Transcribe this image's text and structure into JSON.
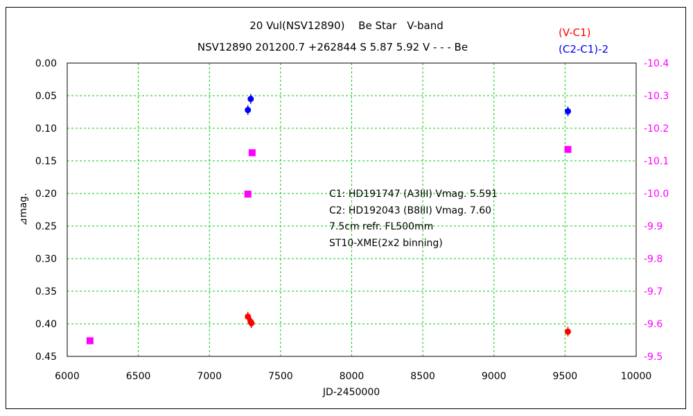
{
  "chart_data": {
    "type": "scatter",
    "title": "20 Vul(NSV12890)　 Be Star　V-band",
    "subtitle": "NSV12890 201200.7 +262844 S 5.87 5.92 V - - - Be",
    "xlabel": "JD-2450000",
    "ylabel": "⊿mag.",
    "xlim": [
      6000,
      10000
    ],
    "x_ticks": [
      6000,
      6500,
      7000,
      7500,
      8000,
      8500,
      9000,
      9500,
      10000
    ],
    "ylim_left": [
      0.0,
      0.45
    ],
    "y_left_ticks": [
      "0.00",
      "0.05",
      "0.10",
      "0.15",
      "0.20",
      "0.25",
      "0.30",
      "0.35",
      "0.40",
      "0.45"
    ],
    "y_left_inverted": true,
    "ylim_right": [
      -10.4,
      -9.5
    ],
    "y_right_ticks": [
      "-10.4",
      "-10.3",
      "-10.2",
      "-10.1",
      "-10.0",
      "-9.9",
      "-9.8",
      "-9.7",
      "-9.6",
      "-9.5"
    ],
    "grid": true,
    "legend_position": "top-right",
    "legend": [
      {
        "label": "(V-C1)",
        "color": "#ff0000"
      },
      {
        "label": "(C2-C1)-2",
        "color": "#0000ff"
      }
    ],
    "annotations": [
      "C1: HD191747 (A3III) Vmag. 5.591",
      "C2: HD192043 (B8III) Vmag. 7.60",
      "7.5cm refr. FL500mm",
      "ST10-XME(2x2 binning)"
    ],
    "series": [
      {
        "name": "(V-C1)",
        "axis": "left",
        "color": "#ff0000",
        "marker": "circle",
        "points": [
          [
            7270,
            0.389
          ],
          [
            7290,
            0.397
          ],
          [
            7295,
            0.399
          ],
          [
            9520,
            0.412
          ]
        ]
      },
      {
        "name": "(C2-C1)-2",
        "axis": "left",
        "color": "#0000ff",
        "marker": "circle",
        "points": [
          [
            7270,
            0.072
          ],
          [
            7290,
            0.055
          ],
          [
            9520,
            0.074
          ]
        ]
      },
      {
        "axis": "right",
        "color": "#ff00ff",
        "marker": "square",
        "points": [
          [
            6160,
            -9.548
          ],
          [
            7270,
            -9.998
          ],
          [
            7300,
            -10.125
          ],
          [
            9520,
            -10.135
          ]
        ]
      }
    ]
  }
}
